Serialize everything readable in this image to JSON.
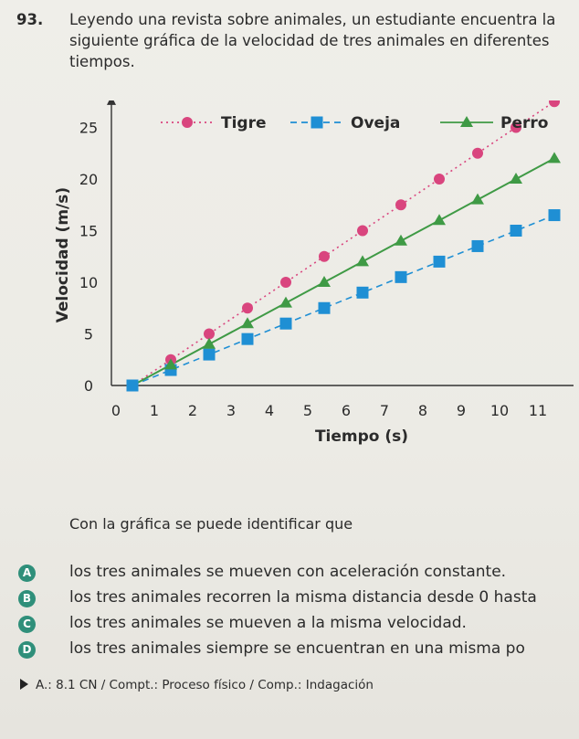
{
  "question": {
    "number": "93.",
    "text": "Leyendo una revista sobre animales, un estudiante encuentra la siguiente gráfica de la velocidad de tres animales en diferentes tiempos."
  },
  "chart_data": {
    "type": "line",
    "xlabel": "Tiempo (s)",
    "ylabel": "Velocidad (m/s)",
    "x": [
      0,
      1,
      2,
      3,
      4,
      5,
      6,
      7,
      8,
      9,
      10,
      11
    ],
    "x_ticks": [
      "0",
      "1",
      "2",
      "3",
      "4",
      "5",
      "6",
      "7",
      "8",
      "9",
      "10",
      "11"
    ],
    "y_ticks": [
      "0",
      "5",
      "10",
      "15",
      "20",
      "25"
    ],
    "xlim": [
      0,
      11
    ],
    "ylim": [
      0,
      27
    ],
    "grid": false,
    "legend_position": "top",
    "series": [
      {
        "name": "Tigre",
        "color": "#d9457e",
        "style": "dotted",
        "marker": "circle",
        "values": [
          0,
          2.5,
          5,
          7.5,
          10,
          12.5,
          15,
          17.5,
          20,
          22.5,
          25,
          27.5
        ]
      },
      {
        "name": "Oveja",
        "color": "#1f8fd4",
        "style": "dashed",
        "marker": "square",
        "values": [
          0,
          1.5,
          3,
          4.5,
          6,
          7.5,
          9,
          10.5,
          12,
          13.5,
          15,
          16.5
        ]
      },
      {
        "name": "Perro",
        "color": "#3f9a45",
        "style": "solid",
        "marker": "triangle",
        "values": [
          0,
          2,
          4,
          6,
          8,
          10,
          12,
          14,
          16,
          18,
          20,
          22
        ]
      }
    ]
  },
  "prompt_text": "Con la gráfica se puede identificar que",
  "options": [
    {
      "letter": "A",
      "text": "los tres animales se mueven con aceleración constante."
    },
    {
      "letter": "B",
      "text": "los tres animales recorren la misma distancia desde 0 hasta"
    },
    {
      "letter": "C",
      "text": "los tres animales se mueven a la misma velocidad."
    },
    {
      "letter": "D",
      "text": "los tres animales siempre se encuentran en una misma po"
    }
  ],
  "footer": "A.: 8.1 CN / Compt.: Proceso físico / Comp.: Indagación"
}
